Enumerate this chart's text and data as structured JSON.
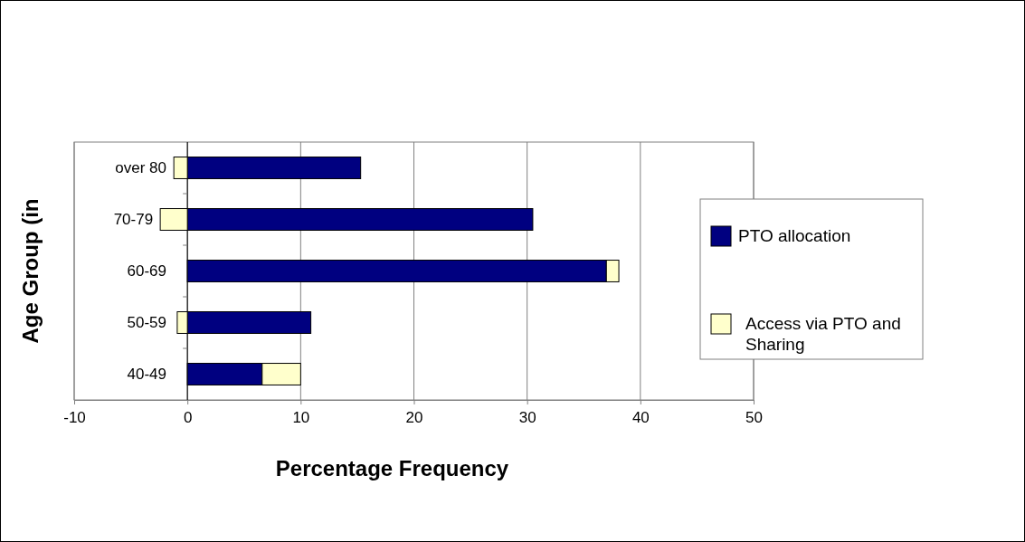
{
  "chart_data": {
    "type": "bar",
    "orientation": "horizontal",
    "stacked": true,
    "xlabel": "Percentage Frequency",
    "ylabel": "Age Group (in",
    "categories": [
      "over 80",
      "70-79",
      "60-69",
      "50-59",
      "40-49"
    ],
    "series": [
      {
        "name": "PTO allocation",
        "color": "#000080",
        "values": [
          15.3,
          30.5,
          37.0,
          10.9,
          6.6
        ]
      },
      {
        "name": "Access via PTO and Sharing",
        "color": "#ffffcc",
        "values": [
          -1.2,
          -2.4,
          1.1,
          -0.9,
          3.4
        ]
      }
    ],
    "xlim": [
      -10,
      50
    ],
    "xticks": [
      -10,
      0,
      10,
      20,
      30,
      40,
      50
    ],
    "grid": "x",
    "legend": "right"
  }
}
